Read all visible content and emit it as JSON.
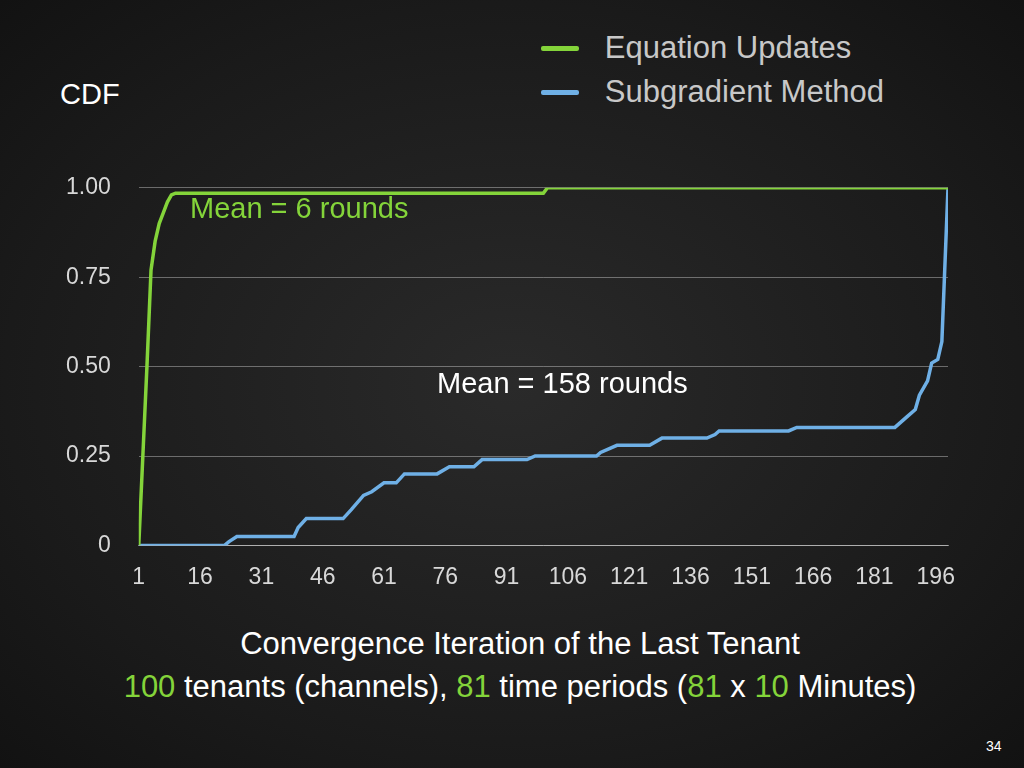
{
  "chart_data": {
    "type": "line",
    "y_label": "CDF",
    "x_label": [
      "Convergence Iteration of the Last Tenant",
      "100 tenants (channels), 81 time periods (81 x 10 Minutes)"
    ],
    "annotations": [
      "Mean = 6 rounds",
      "Mean = 158 rounds"
    ],
    "page_number": 34,
    "series": [
      {
        "name": "Equation Updates",
        "color": "#84d43a",
        "x": [
          1,
          2,
          3,
          4,
          5,
          6,
          7,
          8,
          9,
          10,
          100,
          101,
          199
        ],
        "values": [
          0,
          0.25,
          0.5,
          0.77,
          0.85,
          0.9,
          0.93,
          0.96,
          0.98,
          0.985,
          0.985,
          1.0,
          1.0
        ]
      },
      {
        "name": "Subgradient Method",
        "color": "#6fb0e6",
        "x": [
          1,
          22,
          23,
          25,
          39,
          40,
          42,
          51,
          53,
          56,
          58,
          61,
          64,
          66,
          74,
          77,
          83,
          85,
          96,
          98,
          113,
          114,
          118,
          126,
          129,
          140,
          142,
          143,
          160,
          162,
          186,
          189,
          191,
          192,
          194,
          195,
          196.5,
          197.5,
          199
        ],
        "values": [
          0,
          0,
          0.01,
          0.025,
          0.025,
          0.05,
          0.075,
          0.075,
          0.1,
          0.14,
          0.15,
          0.175,
          0.175,
          0.2,
          0.2,
          0.22,
          0.22,
          0.24,
          0.24,
          0.25,
          0.25,
          0.26,
          0.28,
          0.28,
          0.3,
          0.3,
          0.31,
          0.32,
          0.32,
          0.33,
          0.33,
          0.36,
          0.38,
          0.42,
          0.46,
          0.51,
          0.52,
          0.57,
          1.0
        ]
      }
    ],
    "xlim": [
      1,
      199
    ],
    "xticks": [
      1,
      16,
      31,
      46,
      61,
      76,
      91,
      106,
      121,
      136,
      151,
      166,
      181,
      196
    ],
    "ylim": [
      0,
      1
    ],
    "yticks": [
      0,
      0.25,
      {
        "value": 0.5,
        "label": "0.50"
      },
      0.75,
      {
        "value": 1,
        "label": "1.00"
      }
    ],
    "grid": true,
    "legend": "upper right"
  }
}
